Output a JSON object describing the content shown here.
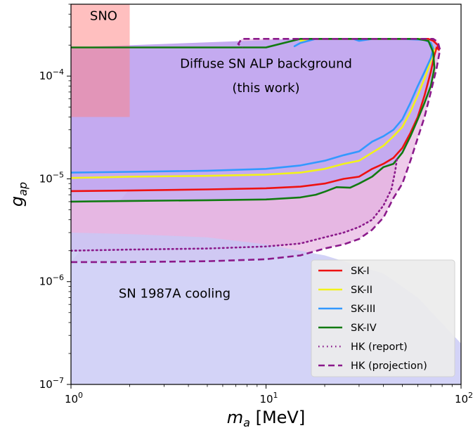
{
  "chart_data": {
    "type": "line",
    "xlabel": "m_a [MeV]",
    "ylabel": "g_ap",
    "xscale": "log",
    "yscale": "log",
    "xlim": [
      1,
      100
    ],
    "ylim": [
      1e-07,
      0.0005
    ],
    "grid": false,
    "legend_position": "bottom-right",
    "x_ticks": [
      {
        "value": 1,
        "label": "10^0"
      },
      {
        "value": 10,
        "label": "10^1"
      },
      {
        "value": 100,
        "label": "10^2"
      }
    ],
    "y_ticks": [
      {
        "value": 1e-07,
        "label": "10^-7"
      },
      {
        "value": 1e-06,
        "label": "10^-6"
      },
      {
        "value": 1e-05,
        "label": "10^-5"
      },
      {
        "value": 0.0001,
        "label": "10^-4"
      }
    ],
    "annotations": [
      {
        "text": "SNO",
        "x": 1.25,
        "y": 0.00035
      },
      {
        "text": "Diffuse SN ALP background",
        "x": 10,
        "y": 0.00012
      },
      {
        "text": "(this work)",
        "x": 10,
        "y": 7e-05
      },
      {
        "text": "SN 1987A cooling",
        "x": 3.4,
        "y": 7e-07
      }
    ],
    "regions": [
      {
        "name": "SNO",
        "color": "#ffb0b0",
        "x": [
          1,
          2
        ],
        "y": [
          4e-05,
          0.0005
        ]
      },
      {
        "name": "SN 1987A cooling",
        "color": "#c8c8f5",
        "x": [
          1,
          2,
          5,
          10,
          20,
          40,
          60,
          100
        ],
        "y_upper": [
          3e-06,
          2.9e-06,
          2.7e-06,
          2.3e-06,
          1.8e-06,
          1.2e-06,
          7e-07,
          2.5e-07
        ],
        "y_lower": 1e-07
      },
      {
        "name": "Diffuse SN ALP background",
        "color": "#c4aaf0"
      }
    ],
    "series": [
      {
        "name": "SK-I",
        "color": "#ee1111",
        "style": "solid",
        "x": [
          1,
          2,
          5,
          10,
          15,
          20,
          25,
          30,
          35,
          40,
          45,
          50,
          55,
          60,
          65,
          70,
          73,
          75,
          77,
          76,
          72,
          68,
          50,
          30,
          18,
          15
        ],
        "y": [
          7.6e-06,
          7.7e-06,
          7.9e-06,
          8.1e-06,
          8.4e-06,
          9e-06,
          1e-05,
          1.05e-05,
          1.25e-05,
          1.4e-05,
          1.6e-05,
          2e-05,
          2.8e-05,
          4e-05,
          6.5e-05,
          0.00011,
          0.00016,
          0.00019,
          0.00018,
          0.0002,
          0.00022,
          0.00023,
          0.00023,
          0.00023,
          0.00023,
          0.00023
        ]
      },
      {
        "name": "SK-II",
        "color": "#f2f21a",
        "style": "solid",
        "x": [
          1,
          2,
          5,
          10,
          15,
          20,
          25,
          30,
          35,
          40,
          45,
          50,
          55,
          60,
          65,
          70,
          73,
          70,
          65,
          50,
          30,
          17,
          15
        ],
        "y": [
          1.02e-05,
          1.05e-05,
          1.07e-05,
          1.1e-05,
          1.15e-05,
          1.25e-05,
          1.4e-05,
          1.5e-05,
          1.8e-05,
          2.1e-05,
          2.6e-05,
          3.2e-05,
          4.5e-05,
          6.5e-05,
          9.5e-05,
          0.00014,
          0.00018,
          0.00021,
          0.00023,
          0.00023,
          0.00023,
          0.00023,
          0.00022
        ]
      },
      {
        "name": "SK-III",
        "color": "#3399ff",
        "style": "solid",
        "x": [
          1,
          2,
          5,
          10,
          15,
          20,
          25,
          30,
          35,
          40,
          45,
          50,
          55,
          60,
          65,
          70,
          72,
          70,
          65,
          50,
          35,
          30,
          28,
          18,
          15,
          14
        ],
        "y": [
          1.15e-05,
          1.17e-05,
          1.2e-05,
          1.25e-05,
          1.35e-05,
          1.5e-05,
          1.7e-05,
          1.85e-05,
          2.3e-05,
          2.6e-05,
          3e-05,
          3.8e-05,
          5.5e-05,
          8e-05,
          0.00011,
          0.00015,
          0.000185,
          0.00021,
          0.000225,
          0.00023,
          0.00023,
          0.00022,
          0.00023,
          0.00023,
          0.00021,
          0.000195
        ]
      },
      {
        "name": "SK-IV",
        "color": "#117a11",
        "style": "solid",
        "x": [
          1,
          2,
          5,
          10,
          15,
          18,
          20,
          23,
          27,
          30,
          35,
          40,
          45,
          50,
          55,
          60,
          65,
          70,
          73,
          72,
          68,
          60,
          30,
          15,
          10,
          5,
          1
        ],
        "y": [
          6e-06,
          6.1e-06,
          6.2e-06,
          6.3e-06,
          6.6e-06,
          7e-06,
          7.5e-06,
          8.3e-06,
          8.2e-06,
          9e-06,
          1.05e-05,
          1.3e-05,
          1.4e-05,
          1.8e-05,
          2.6e-05,
          3.8e-05,
          5.5e-05,
          8e-05,
          0.00012,
          0.00017,
          0.00022,
          0.00023,
          0.00023,
          0.00023,
          0.00019,
          0.00019,
          0.00019
        ]
      },
      {
        "name": "HK (report)",
        "color": "#8b1a8b",
        "style": "dotted",
        "x": [
          1,
          2,
          5,
          10,
          15,
          20,
          25,
          30,
          35,
          40,
          44,
          46,
          47
        ],
        "y": [
          2e-06,
          2.05e-06,
          2.1e-06,
          2.2e-06,
          2.35e-06,
          2.7e-06,
          3e-06,
          3.4e-06,
          4e-06,
          5.5e-06,
          8e-06,
          1.2e-05,
          1.6e-05
        ]
      },
      {
        "name": "HK (projection)",
        "color": "#8b1a8b",
        "style": "dashed",
        "x": [
          1,
          2,
          5,
          10,
          15,
          20,
          25,
          30,
          35,
          40,
          45,
          50,
          55,
          60,
          65,
          70,
          75,
          78,
          76,
          72,
          60,
          30,
          15,
          10,
          8,
          7.5,
          7.2,
          7.6
        ],
        "y": [
          1.55e-06,
          1.55e-06,
          1.58e-06,
          1.65e-06,
          1.8e-06,
          2.1e-06,
          2.3e-06,
          2.6e-06,
          3.2e-06,
          4.2e-06,
          6.5e-06,
          9e-06,
          1.5e-05,
          2.5e-05,
          4e-05,
          7e-05,
          0.00012,
          0.00018,
          0.000215,
          0.00023,
          0.00023,
          0.00023,
          0.00023,
          0.00023,
          0.00023,
          0.00023,
          0.000205,
          0.00019
        ]
      }
    ]
  }
}
